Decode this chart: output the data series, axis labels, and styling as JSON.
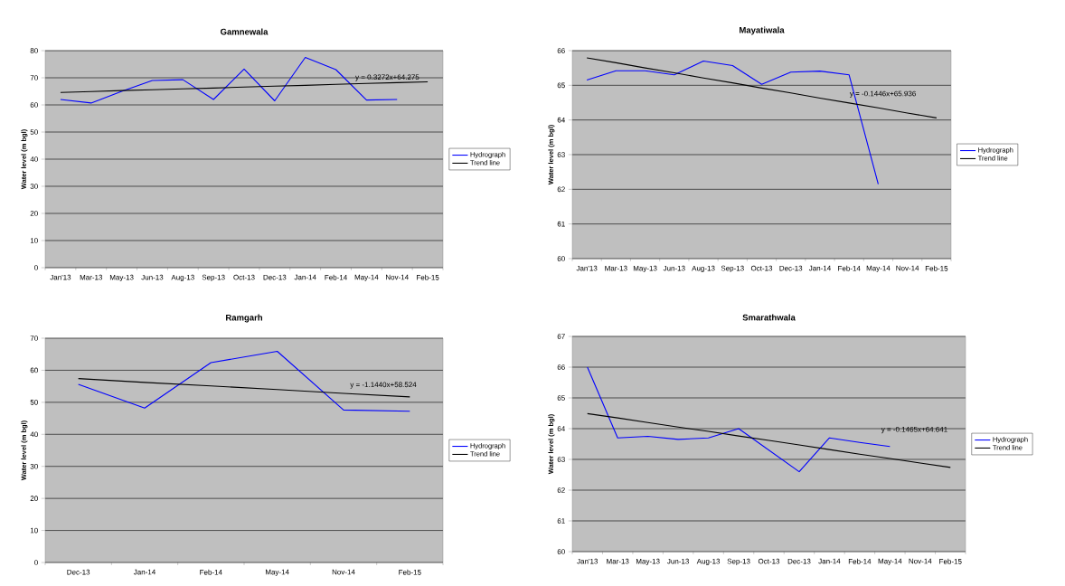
{
  "chart_data": [
    {
      "type": "line",
      "title": "Gamnewala",
      "ylabel": "Water level (m bgl)",
      "categories": [
        "Jan'13",
        "Mar-13",
        "May-13",
        "Jun-13",
        "Aug-13",
        "Sep-13",
        "Oct-13",
        "Dec-13",
        "Jan-14",
        "Feb-14",
        "May-14",
        "Nov-14",
        "Feb-15"
      ],
      "series": [
        {
          "name": "Hydrograph",
          "color": "#0000ff",
          "values": [
            62,
            60.7,
            65,
            69,
            69.3,
            62,
            73.2,
            61.5,
            77.5,
            73,
            61.8,
            62,
            null
          ]
        },
        {
          "name": "Trend line",
          "color": "#000000",
          "values": [
            64.6,
            64.9,
            65.3,
            65.6,
            65.9,
            66.2,
            66.6,
            66.9,
            67.2,
            67.6,
            67.9,
            68.2,
            68.5
          ]
        }
      ],
      "ylim": [
        0,
        80
      ],
      "yticks": [
        0,
        10,
        20,
        30,
        40,
        50,
        60,
        70,
        80
      ],
      "grid": "y",
      "legend": "right",
      "annotations": [
        "y = 0.3272x+64.275"
      ]
    },
    {
      "type": "line",
      "title": "Mayatiwala",
      "ylabel": "Water level (m bgl)",
      "categories": [
        "Jan'13",
        "Mar-13",
        "May-13",
        "Jun-13",
        "Aug-13",
        "Sep-13",
        "Oct-13",
        "Dec-13",
        "Jan-14",
        "Feb-14",
        "May-14",
        "Nov-14",
        "Feb-15"
      ],
      "series": [
        {
          "name": "Hydrograph",
          "color": "#0000ff",
          "values": [
            65.15,
            65.42,
            65.42,
            65.3,
            65.7,
            65.57,
            65.03,
            65.38,
            65.41,
            65.3,
            62.15,
            null,
            null
          ]
        },
        {
          "name": "Trend line",
          "color": "#000000",
          "values": [
            65.79,
            65.65,
            65.5,
            65.36,
            65.21,
            65.07,
            64.92,
            64.78,
            64.63,
            64.49,
            64.35,
            64.2,
            64.06
          ]
        }
      ],
      "ylim": [
        60,
        66
      ],
      "yticks": [
        60,
        61,
        62,
        63,
        64,
        65,
        66
      ],
      "grid": "y",
      "legend": "right",
      "annotations": [
        "y = -0.1446x+65.936"
      ]
    },
    {
      "type": "line",
      "title": "Ramgarh",
      "ylabel": "Water level (m bgl)",
      "categories": [
        "Dec-13",
        "Jan-14",
        "Feb-14",
        "May-14",
        "Nov-14",
        "Feb-15"
      ],
      "series": [
        {
          "name": "Hydrograph",
          "color": "#0000ff",
          "values": [
            55.6,
            48.2,
            62.4,
            65.9,
            47.6,
            47.2
          ]
        },
        {
          "name": "Trend line",
          "color": "#000000",
          "values": [
            57.4,
            56.2,
            55.1,
            54.0,
            52.8,
            51.7
          ]
        }
      ],
      "ylim": [
        0,
        70
      ],
      "yticks": [
        0,
        10,
        20,
        30,
        40,
        50,
        60,
        70
      ],
      "grid": "y",
      "legend": "right",
      "annotations": [
        "y = -1.1440x+58.524"
      ]
    },
    {
      "type": "line",
      "title": "Smarathwala",
      "ylabel": "Water level (m bgl)",
      "categories": [
        "Jan'13",
        "Mar-13",
        "May-13",
        "Jun-13",
        "Aug-13",
        "Sep-13",
        "Oct-13",
        "Dec-13",
        "Jan-14",
        "Feb-14",
        "May-14",
        "Nov-14",
        "Feb-15"
      ],
      "series": [
        {
          "name": "Hydrograph",
          "color": "#0000ff",
          "values": [
            66.0,
            63.7,
            63.75,
            63.65,
            63.7,
            64.0,
            63.3,
            62.6,
            63.7,
            63.55,
            63.42,
            null,
            null
          ]
        },
        {
          "name": "Trend line",
          "color": "#000000",
          "values": [
            64.49,
            64.35,
            64.2,
            64.05,
            63.91,
            63.76,
            63.62,
            63.47,
            63.32,
            63.17,
            63.03,
            62.88,
            62.74
          ]
        }
      ],
      "ylim": [
        60,
        67
      ],
      "yticks": [
        60,
        61,
        62,
        63,
        64,
        65,
        66,
        67
      ],
      "grid": "y",
      "legend": "right",
      "annotations": [
        "y = -0.1465x+64.641"
      ]
    }
  ]
}
